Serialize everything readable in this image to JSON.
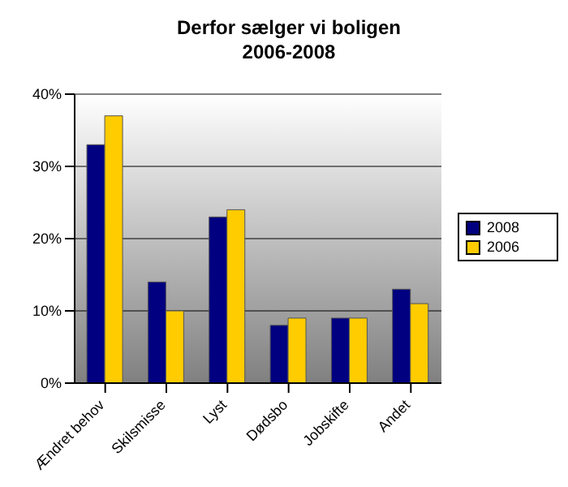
{
  "chart_data": {
    "type": "bar",
    "title": "Derfor sælger vi boligen",
    "subtitle": "2006-2008",
    "categories": [
      "Ændret behov",
      "Skilsmisse",
      "Lyst",
      "Dødsbo",
      "Jobskifte",
      "Andet"
    ],
    "series": [
      {
        "name": "2008",
        "color": "#000080",
        "values": [
          33,
          14,
          23,
          8,
          9,
          13
        ]
      },
      {
        "name": "2006",
        "color": "#ffcc00",
        "values": [
          37,
          10,
          24,
          9,
          9,
          11
        ]
      }
    ],
    "ylim": [
      0,
      40
    ],
    "yticks": [
      {
        "value": 0,
        "label": "0%"
      },
      {
        "value": 10,
        "label": "10%"
      },
      {
        "value": 20,
        "label": "20%"
      },
      {
        "value": 30,
        "label": "30%"
      },
      {
        "value": 40,
        "label": "40%"
      }
    ],
    "grid": "y",
    "legend": "right"
  }
}
